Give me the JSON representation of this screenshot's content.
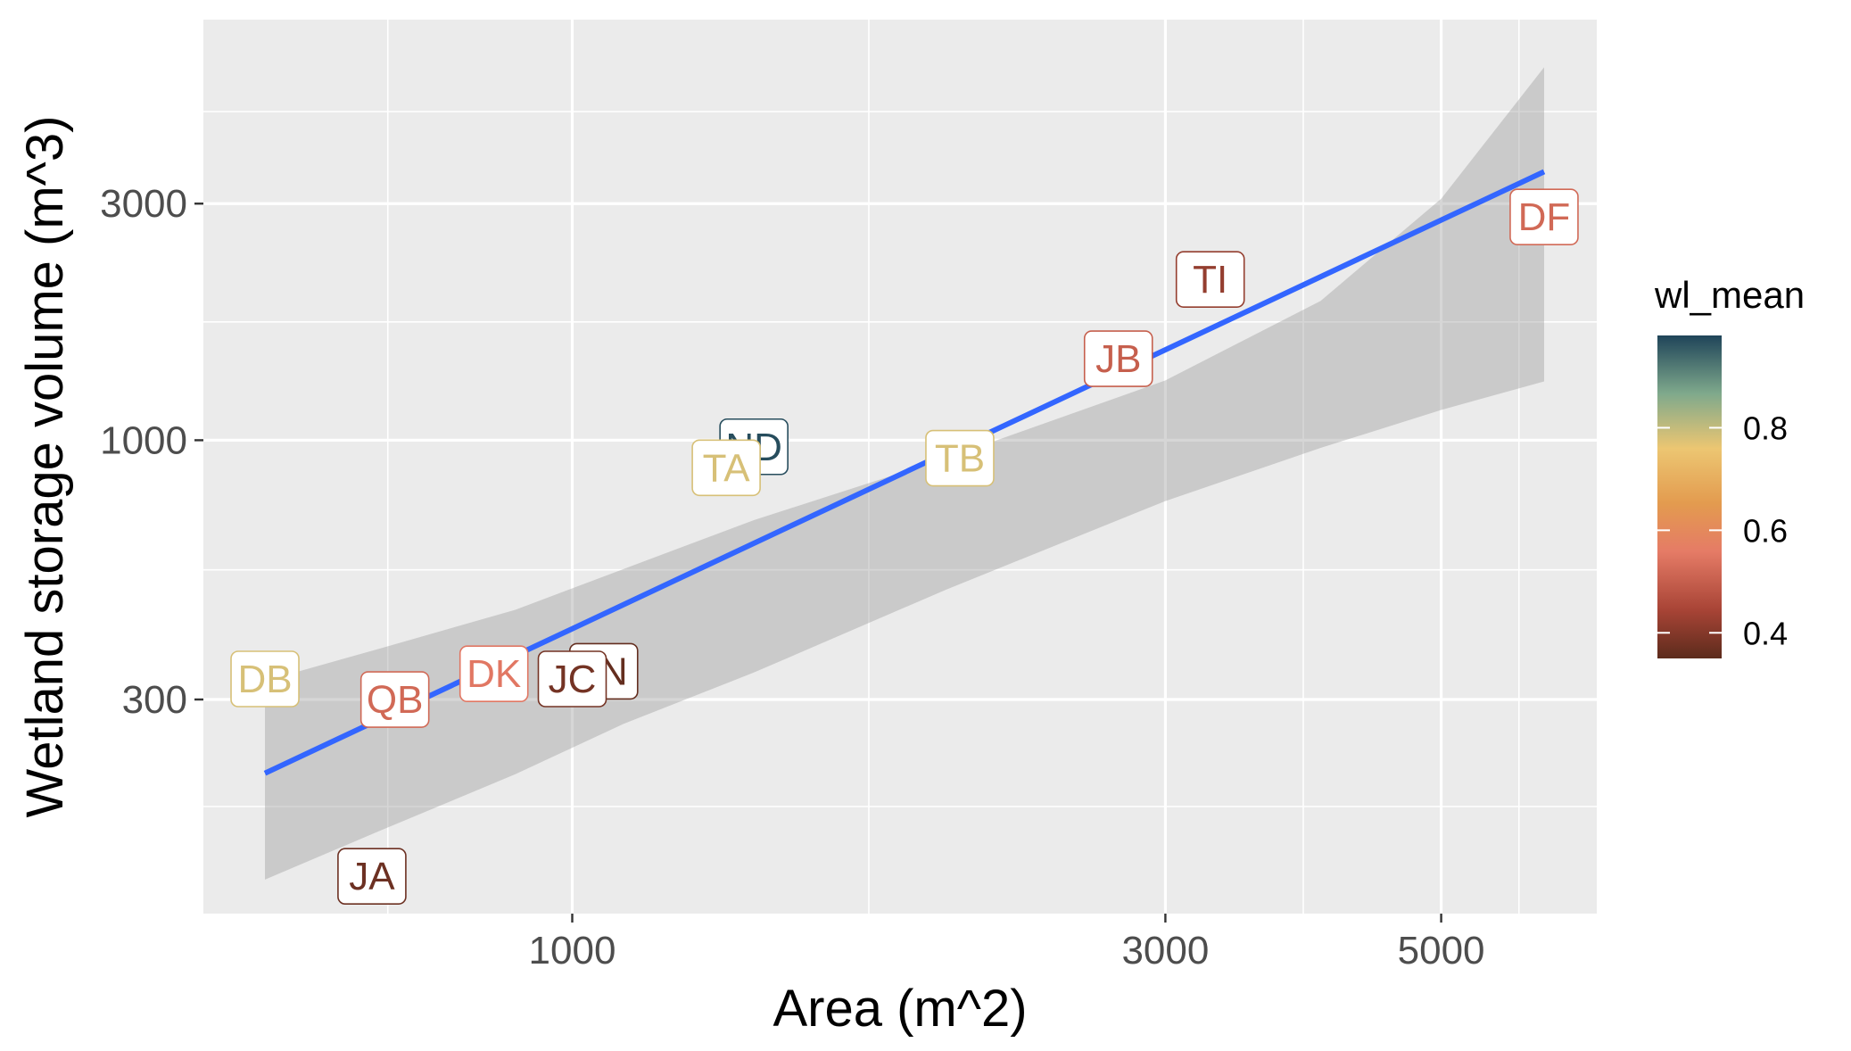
{
  "chart_data": {
    "type": "scatter",
    "title": "",
    "xlabel": "Area (m^2)",
    "ylabel": "Wetland storage volume (m^3)",
    "x_scale": "log10",
    "y_scale": "log10",
    "xlim": [
      505,
      6670
    ],
    "ylim": [
      111,
      7050
    ],
    "x_ticks": [
      1000,
      3000,
      5000
    ],
    "x_tick_labels": [
      "1000",
      "3000",
      "5000"
    ],
    "y_ticks": [
      300,
      1000,
      3000
    ],
    "y_tick_labels": [
      "300",
      "1000",
      "3000"
    ],
    "grid": true,
    "panel_background": "#ebebeb",
    "grid_color": "#ffffff",
    "points": [
      {
        "label": "DB",
        "x": 566,
        "y": 330,
        "wl_mean": 0.78
      },
      {
        "label": "JA",
        "x": 690,
        "y": 132,
        "wl_mean": 0.37
      },
      {
        "label": "QB",
        "x": 720,
        "y": 300,
        "wl_mean": 0.52
      },
      {
        "label": "DK",
        "x": 865,
        "y": 338,
        "wl_mean": 0.55
      },
      {
        "label": "JN",
        "x": 1060,
        "y": 342,
        "wl_mean": 0.36
      },
      {
        "label": "JC",
        "x": 1000,
        "y": 330,
        "wl_mean": 0.38
      },
      {
        "label": "ND",
        "x": 1400,
        "y": 970,
        "wl_mean": 0.97
      },
      {
        "label": "TA",
        "x": 1330,
        "y": 880,
        "wl_mean": 0.78
      },
      {
        "label": "TB",
        "x": 2050,
        "y": 920,
        "wl_mean": 0.78
      },
      {
        "label": "JB",
        "x": 2750,
        "y": 1460,
        "wl_mean": 0.5
      },
      {
        "label": "TI",
        "x": 3260,
        "y": 2110,
        "wl_mean": 0.42
      },
      {
        "label": "DF",
        "x": 6050,
        "y": 2820,
        "wl_mean": 0.52
      }
    ],
    "fit_line": {
      "color": "#3366ff",
      "x": [
        566,
        6050
      ],
      "y": [
        213,
        3480
      ]
    },
    "confidence_band": {
      "color": "#999999",
      "x": [
        566,
        700,
        900,
        1100,
        1400,
        2000,
        3000,
        4000,
        5000,
        6050
      ],
      "lower": [
        130,
        163,
        212,
        268,
        340,
        500,
        754,
        965,
        1151,
        1314
      ],
      "upper": [
        327,
        380,
        455,
        550,
        690,
        920,
        1320,
        1910,
        3070,
        5650
      ]
    },
    "legend": {
      "title": "wl_mean",
      "placement": "right",
      "type": "colorbar",
      "range": [
        0.35,
        0.98
      ],
      "ticks": [
        0.4,
        0.6,
        0.8
      ],
      "tick_labels": [
        "0.4",
        "0.6",
        "0.8"
      ],
      "colors": [
        {
          "stop": 0.0,
          "color": "#5c2b1c"
        },
        {
          "stop": 0.15,
          "color": "#a84436"
        },
        {
          "stop": 0.33,
          "color": "#e57b66"
        },
        {
          "stop": 0.48,
          "color": "#e39b4f"
        },
        {
          "stop": 0.65,
          "color": "#ecc672"
        },
        {
          "stop": 0.82,
          "color": "#7fa98c"
        },
        {
          "stop": 1.0,
          "color": "#1f4459"
        }
      ]
    }
  }
}
